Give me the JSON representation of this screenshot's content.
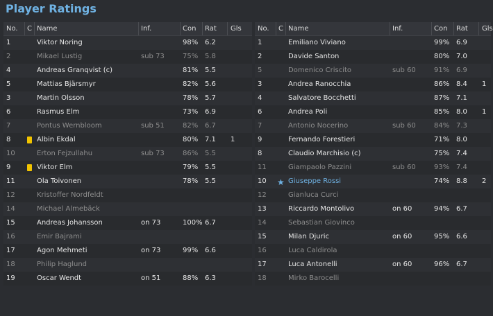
{
  "title": "Player Ratings",
  "headers": {
    "no": "No.",
    "c": "C",
    "name": "Name",
    "inf": "Inf.",
    "con": "Con",
    "rat": "Rat",
    "gls": "Gls"
  },
  "colors": {
    "accent": "#6fb2e3",
    "yellow_card": "#f2c400",
    "background": "#2b2d31"
  },
  "left_team": [
    {
      "no": "1",
      "name": "Viktor Noring",
      "inf": "",
      "con": "98%",
      "rat": "6.2",
      "gls": "",
      "card": "",
      "dim": false
    },
    {
      "no": "2",
      "name": "Mikael Lustig",
      "inf": "sub 73",
      "con": "75%",
      "rat": "5.8",
      "gls": "",
      "card": "",
      "dim": true
    },
    {
      "no": "4",
      "name": "Andreas Granqvist (c)",
      "inf": "",
      "con": "81%",
      "rat": "5.5",
      "gls": "",
      "card": "",
      "dim": false
    },
    {
      "no": "5",
      "name": "Mattias Bjärsmyr",
      "inf": "",
      "con": "82%",
      "rat": "5.6",
      "gls": "",
      "card": "",
      "dim": false
    },
    {
      "no": "3",
      "name": "Martin Olsson",
      "inf": "",
      "con": "78%",
      "rat": "5.7",
      "gls": "",
      "card": "",
      "dim": false
    },
    {
      "no": "6",
      "name": "Rasmus Elm",
      "inf": "",
      "con": "73%",
      "rat": "6.9",
      "gls": "",
      "card": "",
      "dim": false
    },
    {
      "no": "7",
      "name": "Pontus Wernbloom",
      "inf": "sub 51",
      "con": "82%",
      "rat": "6.7",
      "gls": "",
      "card": "",
      "dim": true
    },
    {
      "no": "8",
      "name": "Albin Ekdal",
      "inf": "",
      "con": "80%",
      "rat": "7.1",
      "gls": "1",
      "card": "yellow",
      "dim": false
    },
    {
      "no": "10",
      "name": "Erton Fejzullahu",
      "inf": "sub 73",
      "con": "86%",
      "rat": "5.5",
      "gls": "",
      "card": "",
      "dim": true
    },
    {
      "no": "9",
      "name": "Viktor Elm",
      "inf": "",
      "con": "79%",
      "rat": "5.5",
      "gls": "",
      "card": "yellow",
      "dim": false
    },
    {
      "no": "11",
      "name": "Ola Toivonen",
      "inf": "",
      "con": "78%",
      "rat": "5.5",
      "gls": "",
      "card": "",
      "dim": false
    },
    {
      "no": "12",
      "name": "Kristoffer Nordfeldt",
      "inf": "",
      "con": "",
      "rat": "",
      "gls": "",
      "card": "",
      "dim": true
    },
    {
      "no": "14",
      "name": "Michael Almebäck",
      "inf": "",
      "con": "",
      "rat": "",
      "gls": "",
      "card": "",
      "dim": true
    },
    {
      "no": "15",
      "name": "Andreas Johansson",
      "inf": "on 73",
      "con": "100%",
      "rat": "6.7",
      "gls": "",
      "card": "",
      "dim": false
    },
    {
      "no": "16",
      "name": "Emir Bajrami",
      "inf": "",
      "con": "",
      "rat": "",
      "gls": "",
      "card": "",
      "dim": true
    },
    {
      "no": "17",
      "name": "Agon Mehmeti",
      "inf": "on 73",
      "con": "99%",
      "rat": "6.6",
      "gls": "",
      "card": "",
      "dim": false
    },
    {
      "no": "18",
      "name": "Philip Haglund",
      "inf": "",
      "con": "",
      "rat": "",
      "gls": "",
      "card": "",
      "dim": true
    },
    {
      "no": "19",
      "name": "Oscar Wendt",
      "inf": "on 51",
      "con": "88%",
      "rat": "6.3",
      "gls": "",
      "card": "",
      "dim": false
    }
  ],
  "right_team": [
    {
      "no": "1",
      "name": "Emiliano Viviano",
      "inf": "",
      "con": "99%",
      "rat": "6.9",
      "gls": "",
      "card": "",
      "dim": false,
      "star": false
    },
    {
      "no": "2",
      "name": "Davide Santon",
      "inf": "",
      "con": "80%",
      "rat": "7.0",
      "gls": "",
      "card": "",
      "dim": false,
      "star": false
    },
    {
      "no": "5",
      "name": "Domenico Criscito",
      "inf": "sub 60",
      "con": "91%",
      "rat": "6.9",
      "gls": "",
      "card": "",
      "dim": true,
      "star": false
    },
    {
      "no": "3",
      "name": "Andrea Ranocchia",
      "inf": "",
      "con": "86%",
      "rat": "8.4",
      "gls": "1",
      "card": "",
      "dim": false,
      "star": false
    },
    {
      "no": "4",
      "name": "Salvatore Bocchetti",
      "inf": "",
      "con": "87%",
      "rat": "7.1",
      "gls": "",
      "card": "",
      "dim": false,
      "star": false
    },
    {
      "no": "6",
      "name": "Andrea Poli",
      "inf": "",
      "con": "85%",
      "rat": "8.0",
      "gls": "1",
      "card": "",
      "dim": false,
      "star": false
    },
    {
      "no": "7",
      "name": "Antonio Nocerino",
      "inf": "sub 60",
      "con": "84%",
      "rat": "7.3",
      "gls": "",
      "card": "",
      "dim": true,
      "star": false
    },
    {
      "no": "9",
      "name": "Fernando Forestieri",
      "inf": "",
      "con": "71%",
      "rat": "8.0",
      "gls": "",
      "card": "",
      "dim": false,
      "star": false
    },
    {
      "no": "8",
      "name": "Claudio Marchisio (c)",
      "inf": "",
      "con": "75%",
      "rat": "7.4",
      "gls": "",
      "card": "",
      "dim": false,
      "star": false
    },
    {
      "no": "11",
      "name": "Giampaolo Pazzini",
      "inf": "sub 60",
      "con": "93%",
      "rat": "7.4",
      "gls": "",
      "card": "",
      "dim": true,
      "star": false
    },
    {
      "no": "10",
      "name": "Giuseppe Rossi",
      "inf": "",
      "con": "74%",
      "rat": "8.8",
      "gls": "2",
      "card": "",
      "dim": false,
      "star": true
    },
    {
      "no": "12",
      "name": "Gianluca Curci",
      "inf": "",
      "con": "",
      "rat": "",
      "gls": "",
      "card": "",
      "dim": true,
      "star": false
    },
    {
      "no": "13",
      "name": "Riccardo Montolivo",
      "inf": "on 60",
      "con": "94%",
      "rat": "6.7",
      "gls": "",
      "card": "",
      "dim": false,
      "star": false
    },
    {
      "no": "14",
      "name": "Sebastian Giovinco",
      "inf": "",
      "con": "",
      "rat": "",
      "gls": "",
      "card": "",
      "dim": true,
      "star": false
    },
    {
      "no": "15",
      "name": "Milan Djuric",
      "inf": "on 60",
      "con": "95%",
      "rat": "6.6",
      "gls": "",
      "card": "",
      "dim": false,
      "star": false
    },
    {
      "no": "16",
      "name": "Luca Caldirola",
      "inf": "",
      "con": "",
      "rat": "",
      "gls": "",
      "card": "",
      "dim": true,
      "star": false
    },
    {
      "no": "17",
      "name": "Luca Antonelli",
      "inf": "on 60",
      "con": "96%",
      "rat": "6.7",
      "gls": "",
      "card": "",
      "dim": false,
      "star": false
    },
    {
      "no": "18",
      "name": "Mirko Barocelli",
      "inf": "",
      "con": "",
      "rat": "",
      "gls": "",
      "card": "",
      "dim": true,
      "star": false
    }
  ]
}
